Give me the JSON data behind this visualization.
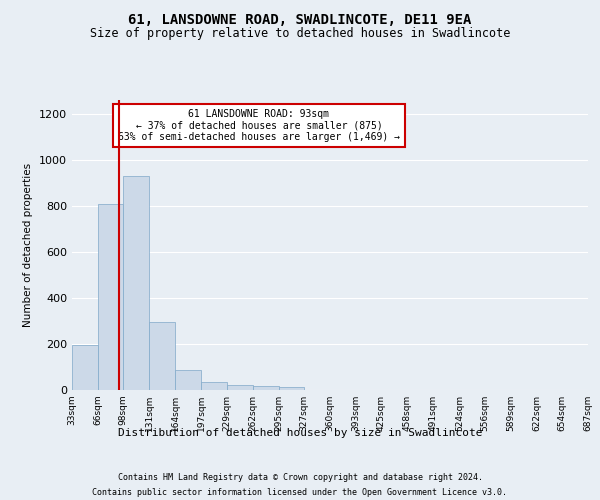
{
  "title": "61, LANSDOWNE ROAD, SWADLINCOTE, DE11 9EA",
  "subtitle": "Size of property relative to detached houses in Swadlincote",
  "xlabel": "Distribution of detached houses by size in Swadlincote",
  "ylabel": "Number of detached properties",
  "footer_line1": "Contains HM Land Registry data © Crown copyright and database right 2024.",
  "footer_line2": "Contains public sector information licensed under the Open Government Licence v3.0.",
  "annotation_title": "61 LANSDOWNE ROAD: 93sqm",
  "annotation_line2": "← 37% of detached houses are smaller (875)",
  "annotation_line3": "63% of semi-detached houses are larger (1,469) →",
  "property_size_sqm": 93,
  "bin_edges": [
    33,
    66,
    98,
    131,
    164,
    197,
    229,
    262,
    295,
    327,
    360,
    393,
    425,
    458,
    491,
    524,
    556,
    589,
    622,
    654,
    687
  ],
  "bar_heights": [
    195,
    810,
    930,
    295,
    85,
    35,
    20,
    18,
    12,
    0,
    0,
    0,
    0,
    0,
    0,
    0,
    0,
    0,
    0,
    0
  ],
  "bar_color": "#ccd9e8",
  "bar_edge_color": "#7fa8c9",
  "vline_color": "#cc0000",
  "vline_x": 93,
  "ylim": [
    0,
    1260
  ],
  "yticks": [
    0,
    200,
    400,
    600,
    800,
    1000,
    1200
  ],
  "background_color": "#e8eef4",
  "plot_bg_color": "#e8eef4",
  "annotation_box_color": "#ffffff",
  "annotation_box_edge": "#cc0000",
  "title_fontsize": 10,
  "subtitle_fontsize": 9,
  "tick_labels": [
    "33sqm",
    "66sqm",
    "98sqm",
    "131sqm",
    "164sqm",
    "197sqm",
    "229sqm",
    "262sqm",
    "295sqm",
    "327sqm",
    "360sqm",
    "393sqm",
    "425sqm",
    "458sqm",
    "491sqm",
    "524sqm",
    "556sqm",
    "589sqm",
    "622sqm",
    "654sqm",
    "687sqm"
  ]
}
